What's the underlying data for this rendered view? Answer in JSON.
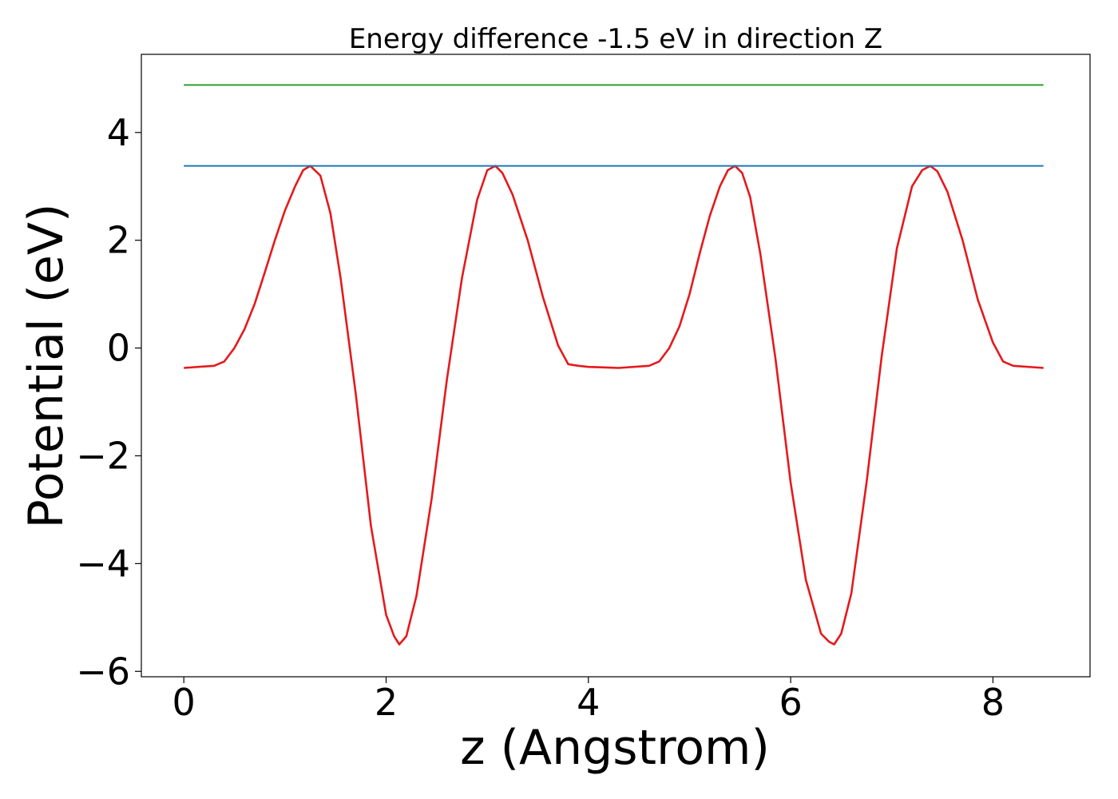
{
  "chart_data": {
    "type": "line",
    "title": "Energy difference -1.5 eV in direction Z",
    "xlabel": "z (Angstrom)",
    "ylabel": "Potential (eV)",
    "xlim": [
      -0.42,
      8.96
    ],
    "ylim": [
      -6.1,
      5.45
    ],
    "x_ticks": [
      0,
      2,
      4,
      6,
      8
    ],
    "x_tick_labels": [
      "0",
      "2",
      "4",
      "6",
      "8"
    ],
    "y_ticks": [
      -6,
      -4,
      -2,
      0,
      2,
      4
    ],
    "y_tick_labels": [
      "−6",
      "−4",
      "−2",
      "0",
      "2",
      "4"
    ],
    "grid": false,
    "legend": "none",
    "series": [
      {
        "color": "#e41a1c",
        "x": [
          0.0,
          0.3,
          0.4,
          0.5,
          0.6,
          0.7,
          0.8,
          0.9,
          1.0,
          1.1,
          1.18,
          1.25,
          1.35,
          1.45,
          1.55,
          1.7,
          1.85,
          2.0,
          2.08,
          2.13,
          2.2,
          2.3,
          2.45,
          2.6,
          2.75,
          2.9,
          3.0,
          3.08,
          3.15,
          3.25,
          3.4,
          3.55,
          3.7,
          3.8,
          3.9,
          4.0,
          4.3,
          4.6,
          4.7,
          4.8,
          4.9,
          5.0,
          5.1,
          5.2,
          5.3,
          5.38,
          5.45,
          5.52,
          5.6,
          5.7,
          5.85,
          6.0,
          6.15,
          6.3,
          6.38,
          6.43,
          6.5,
          6.6,
          6.75,
          6.9,
          7.05,
          7.2,
          7.3,
          7.38,
          7.45,
          7.55,
          7.7,
          7.85,
          8.0,
          8.1,
          8.2,
          8.5
        ],
        "y": [
          -0.37,
          -0.33,
          -0.25,
          0.0,
          0.35,
          0.82,
          1.4,
          2.0,
          2.55,
          3.0,
          3.3,
          3.38,
          3.2,
          2.5,
          1.3,
          -0.85,
          -3.3,
          -4.95,
          -5.35,
          -5.5,
          -5.35,
          -4.6,
          -2.8,
          -0.6,
          1.3,
          2.75,
          3.3,
          3.38,
          3.25,
          2.85,
          2.0,
          0.95,
          0.05,
          -0.3,
          -0.33,
          -0.35,
          -0.37,
          -0.33,
          -0.25,
          0.0,
          0.4,
          1.0,
          1.75,
          2.45,
          3.0,
          3.3,
          3.38,
          3.25,
          2.8,
          1.75,
          -0.2,
          -2.5,
          -4.3,
          -5.3,
          -5.45,
          -5.5,
          -5.3,
          -4.55,
          -2.5,
          -0.15,
          1.85,
          3.0,
          3.3,
          3.38,
          3.28,
          2.9,
          2.0,
          0.9,
          0.1,
          -0.25,
          -0.33,
          -0.37
        ]
      },
      {
        "color": "#1f77b4",
        "x": [
          0.0,
          8.5
        ],
        "y": [
          3.38,
          3.38
        ]
      },
      {
        "color": "#2ca02c",
        "x": [
          0.0,
          8.5
        ],
        "y": [
          4.88,
          4.88
        ]
      }
    ]
  }
}
